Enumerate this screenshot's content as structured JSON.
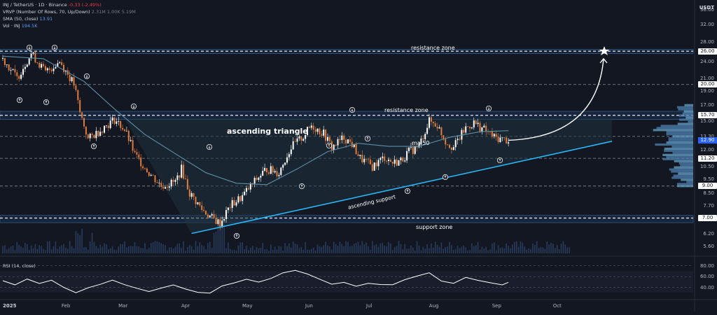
{
  "legend": {
    "main_symbol": "INJ / TetherUS · 1D · Binance",
    "main_change": "-0.33 (-2.49%)",
    "vrvp_label": "VRVP (Number Of Rows, 70, Up/Down)",
    "vrvp_values": "2.31M  1.00K  5.19M",
    "sma_label": "SMA (50, close)",
    "sma_value": "13.91",
    "vol_label": "Vol · INJ",
    "vol_value": "194.5K",
    "rsi_label": "RSI (14, close)"
  },
  "currency_label": "USDT",
  "annotations": {
    "resistance_top": "resistance zone",
    "resistance_mid": "resistance zone",
    "ascending_triangle": "ascending triangle",
    "ma50": "ma 50",
    "ascending_support": "ascending support",
    "support_zone": "support zone"
  },
  "colors": {
    "background": "#131722",
    "up": "#ffffff",
    "down": "#e07b39",
    "ma": "#5b8fa8",
    "support_line": "#29b6f6",
    "zone_fill": "#1e3a5f",
    "triangle_fill": "#1f3340",
    "rsi_line": "#ffffff",
    "last_price_badge": "#2962ff",
    "level_badge": "#ffffff"
  },
  "chart_data": {
    "type": "candlestick",
    "x_axis_labels": [
      "2025",
      "Feb",
      "Mar",
      "Apr",
      "May",
      "Jun",
      "Jul",
      "Aug",
      "Sep",
      "Oct"
    ],
    "y_axis_scale": "log",
    "y_tick_labels": [
      "36.00",
      "32.00",
      "28.00",
      "24.00",
      "21.00",
      "19.00",
      "17.00",
      "15.00",
      "13.30",
      "12.00",
      "10.50",
      "9.50",
      "8.50",
      "7.70",
      "6.90",
      "6.20",
      "5.60"
    ],
    "highlighted_levels": [
      "26.00",
      "20.00",
      "15.70",
      "12.90",
      "11.20",
      "9.00",
      "7.00"
    ],
    "last_price": 12.9,
    "sma50_last": 13.91,
    "resistance_zone_top": [
      25.5,
      26.4
    ],
    "resistance_zone_mid": [
      15.2,
      16.2
    ],
    "support_zone": [
      6.75,
      7.15
    ],
    "price_path": [
      [
        0,
        24.5
      ],
      [
        7,
        21.0
      ],
      [
        14,
        25.5
      ],
      [
        21,
        22.0
      ],
      [
        28,
        24.0
      ],
      [
        35,
        20.0
      ],
      [
        38,
        16.0
      ],
      [
        42,
        13.0
      ],
      [
        48,
        14.0
      ],
      [
        55,
        15.2
      ],
      [
        60,
        14.0
      ],
      [
        65,
        11.5
      ],
      [
        72,
        10.0
      ],
      [
        78,
        9.0
      ],
      [
        85,
        9.3
      ],
      [
        88,
        10.3
      ],
      [
        92,
        8.5
      ],
      [
        98,
        7.5
      ],
      [
        103,
        7.0
      ],
      [
        107,
        6.7
      ],
      [
        112,
        7.7
      ],
      [
        118,
        8.3
      ],
      [
        125,
        9.5
      ],
      [
        130,
        10.3
      ],
      [
        136,
        10.0
      ],
      [
        142,
        12.2
      ],
      [
        148,
        13.3
      ],
      [
        152,
        14.5
      ],
      [
        158,
        13.6
      ],
      [
        162,
        12.2
      ],
      [
        168,
        13.2
      ],
      [
        172,
        12.5
      ],
      [
        176,
        11.2
      ],
      [
        182,
        10.5
      ],
      [
        188,
        11.3
      ],
      [
        192,
        10.8
      ],
      [
        196,
        11.0
      ],
      [
        200,
        11.8
      ],
      [
        205,
        12.3
      ],
      [
        210,
        15.0
      ],
      [
        214,
        14.5
      ],
      [
        218,
        12.8
      ],
      [
        222,
        12.2
      ],
      [
        228,
        14.2
      ],
      [
        232,
        14.8
      ],
      [
        238,
        13.9
      ],
      [
        242,
        13.2
      ],
      [
        246,
        13.0
      ],
      [
        249,
        12.9
      ]
    ],
    "sma_path": [
      [
        0,
        25.0
      ],
      [
        20,
        24.5
      ],
      [
        40,
        20.5
      ],
      [
        55,
        16.5
      ],
      [
        70,
        13.5
      ],
      [
        85,
        11.6
      ],
      [
        100,
        10.0
      ],
      [
        115,
        9.2
      ],
      [
        130,
        9.1
      ],
      [
        145,
        10.3
      ],
      [
        160,
        11.8
      ],
      [
        175,
        12.6
      ],
      [
        190,
        12.3
      ],
      [
        205,
        12.3
      ],
      [
        220,
        13.2
      ],
      [
        235,
        13.8
      ],
      [
        249,
        13.91
      ]
    ],
    "rsi": {
      "y_tick_labels": [
        "80.00",
        "60.00",
        "40.00"
      ],
      "path": [
        [
          0,
          52
        ],
        [
          6,
          44
        ],
        [
          12,
          55
        ],
        [
          18,
          47
        ],
        [
          24,
          52
        ],
        [
          30,
          40
        ],
        [
          36,
          30
        ],
        [
          42,
          38
        ],
        [
          48,
          45
        ],
        [
          54,
          52
        ],
        [
          60,
          46
        ],
        [
          66,
          38
        ],
        [
          72,
          33
        ],
        [
          78,
          40
        ],
        [
          84,
          44
        ],
        [
          90,
          36
        ],
        [
          96,
          32
        ],
        [
          102,
          30
        ],
        [
          108,
          44
        ],
        [
          114,
          48
        ],
        [
          120,
          54
        ],
        [
          126,
          50
        ],
        [
          132,
          58
        ],
        [
          138,
          66
        ],
        [
          144,
          72
        ],
        [
          150,
          64
        ],
        [
          156,
          55
        ],
        [
          162,
          47
        ],
        [
          168,
          50
        ],
        [
          174,
          42
        ],
        [
          180,
          48
        ],
        [
          186,
          44
        ],
        [
          192,
          46
        ],
        [
          198,
          55
        ],
        [
          204,
          62
        ],
        [
          210,
          66
        ],
        [
          216,
          52
        ],
        [
          222,
          48
        ],
        [
          228,
          60
        ],
        [
          234,
          54
        ],
        [
          240,
          50
        ],
        [
          246,
          46
        ],
        [
          249,
          48
        ]
      ]
    }
  }
}
